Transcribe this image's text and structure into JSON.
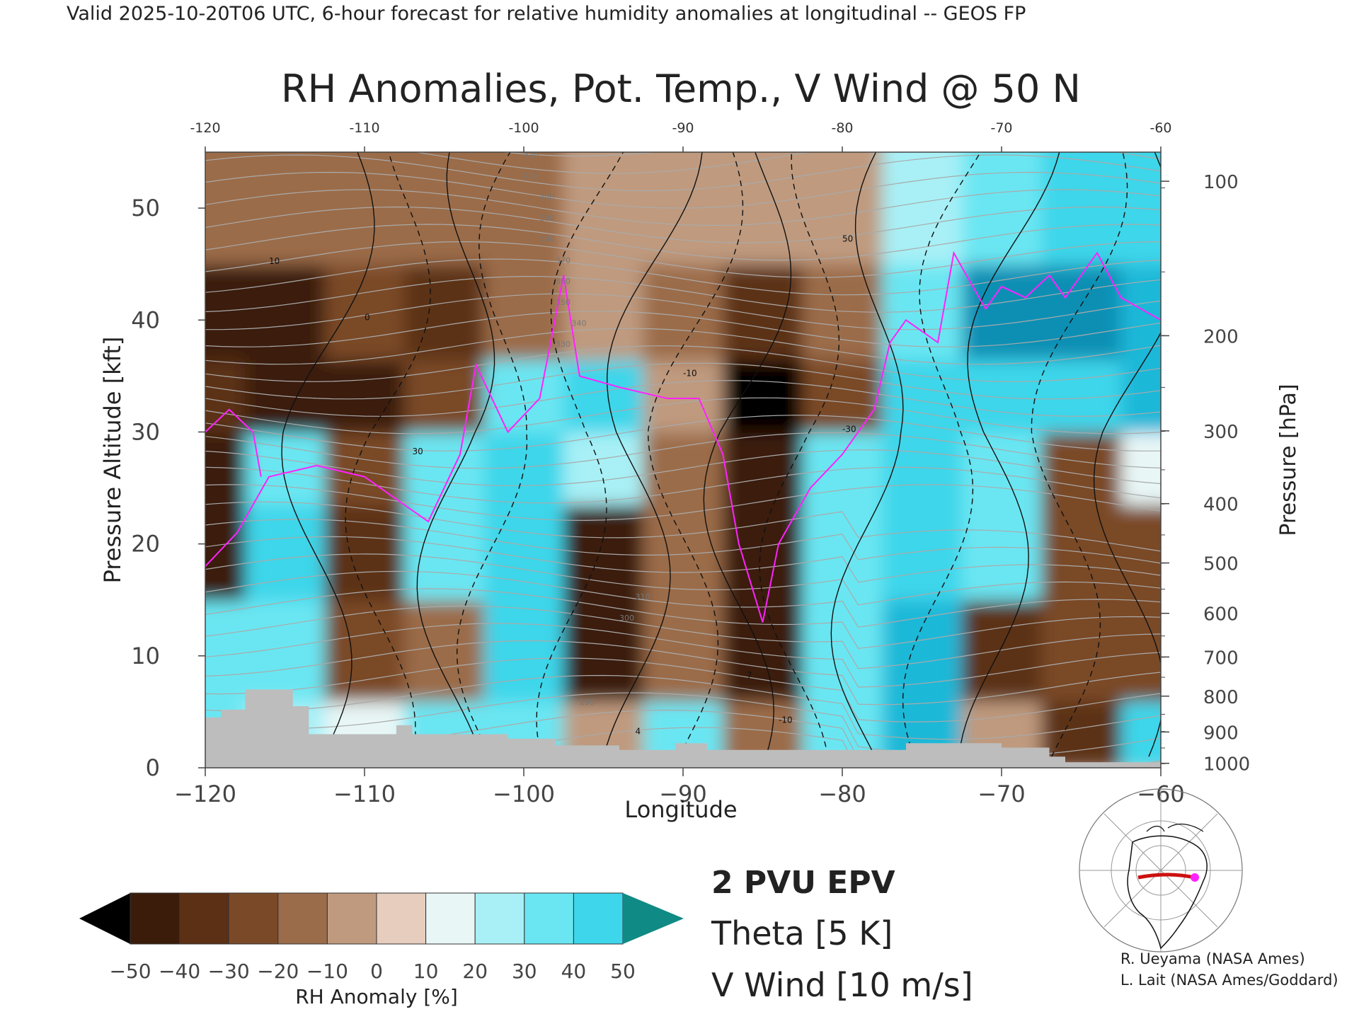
{
  "header": {
    "text": "Valid 2025-10-20T06 UTC, 6-hour forecast for relative humidity anomalies at longitudinal -- GEOS FP"
  },
  "chart_data": {
    "type": "heatmap",
    "title": "RH Anomalies, Pot. Temp., V Wind @ 50 N",
    "xlabel": "Longitude",
    "ylabel_left": "Pressure Altitude [kft]",
    "ylabel_right": "Pressure [hPa]",
    "xlim": [
      -120,
      -60
    ],
    "ylim": [
      0,
      55
    ],
    "x_ticks_bottom": [
      "−120",
      "−110",
      "−100",
      "−90",
      "−80",
      "−70",
      "−60"
    ],
    "x_ticks_top": [
      "-120",
      "-110",
      "-100",
      "-90",
      "-80",
      "-70",
      "-60"
    ],
    "x_tick_values": [
      -120,
      -110,
      -100,
      -90,
      -80,
      -70,
      -60
    ],
    "y_ticks_left": [
      "0",
      "10",
      "20",
      "30",
      "40",
      "50"
    ],
    "y_tick_values_left": [
      0,
      10,
      20,
      30,
      40,
      50
    ],
    "pressure_ticks": [
      {
        "label": "100",
        "alt": 52.4
      },
      {
        "label": "200",
        "alt": 38.6
      },
      {
        "label": "300",
        "alt": 30.1
      },
      {
        "label": "400",
        "alt": 23.6
      },
      {
        "label": "500",
        "alt": 18.3
      },
      {
        "label": "600",
        "alt": 13.8
      },
      {
        "label": "700",
        "alt": 9.9
      },
      {
        "label": "800",
        "alt": 6.4
      },
      {
        "label": "900",
        "alt": 3.2
      },
      {
        "label": "1000",
        "alt": 0.4
      }
    ],
    "grid": false,
    "rh_anomaly_grid": {
      "lons": [
        -120,
        -115,
        -110,
        -105,
        -100,
        -95,
        -90,
        -85,
        -80,
        -75,
        -70,
        -65,
        -60
      ],
      "alts": [
        2,
        10,
        20,
        27,
        33,
        40,
        50
      ],
      "values": [
        [
          20,
          15,
          5,
          20,
          25,
          -10,
          20,
          -20,
          20,
          40,
          -5,
          -40,
          30
        ],
        [
          25,
          20,
          -30,
          -20,
          30,
          -45,
          -20,
          -50,
          25,
          40,
          -40,
          -30,
          -30
        ],
        [
          -45,
          30,
          -35,
          25,
          30,
          -45,
          -20,
          -50,
          25,
          30,
          20,
          -25,
          -30
        ],
        [
          -50,
          25,
          -25,
          20,
          30,
          10,
          -15,
          -50,
          25,
          30,
          20,
          -30,
          5
        ],
        [
          -40,
          -45,
          -50,
          -30,
          25,
          30,
          -10,
          -55,
          -30,
          30,
          35,
          35,
          40
        ],
        [
          -45,
          -45,
          -30,
          -35,
          -20,
          -5,
          -20,
          -40,
          -15,
          20,
          50,
          50,
          45
        ],
        [
          -15,
          -15,
          -15,
          -15,
          -12,
          -10,
          -10,
          -10,
          -5,
          10,
          20,
          30,
          30
        ]
      ],
      "terrain_kft": [
        [
          -120,
          4.5
        ],
        [
          -119,
          5.2
        ],
        [
          -117.5,
          7.0
        ],
        [
          -115.5,
          7.0
        ],
        [
          -114.5,
          5.5
        ],
        [
          -113.5,
          3.0
        ],
        [
          -109,
          3.0
        ],
        [
          -108,
          3.8
        ],
        [
          -107,
          3.0
        ],
        [
          -102,
          3.0
        ],
        [
          -101,
          2.6
        ],
        [
          -98,
          2.0
        ],
        [
          -94,
          1.6
        ],
        [
          -91,
          1.6
        ],
        [
          -90.5,
          2.2
        ],
        [
          -88.5,
          1.6
        ],
        [
          -76.5,
          1.6
        ],
        [
          -76,
          2.2
        ],
        [
          -73,
          2.2
        ],
        [
          -70,
          1.8
        ],
        [
          -67,
          1.0
        ],
        [
          -66,
          0.5
        ],
        [
          -60,
          0.5
        ]
      ]
    },
    "theta_levels_labeled": [
      "290",
      "300",
      "310",
      "330",
      "340",
      "350",
      "360",
      "370",
      "380",
      "390",
      "400",
      "410",
      "420"
    ],
    "vwind_labels": [
      "10",
      "0",
      "30",
      "-10",
      "-30",
      "50",
      "4",
      "7",
      "-10"
    ],
    "legends": {
      "epv": "2 PVU EPV",
      "theta": "Theta [5 K]",
      "vwind": "V Wind [10 m/s]"
    },
    "colorbar": {
      "label": "RH Anomaly [%]",
      "ticks": [
        "−50",
        "−40",
        "−30",
        "−20",
        "−10",
        "0",
        "10",
        "20",
        "30",
        "40",
        "50"
      ],
      "colors": [
        "#000000",
        "#3b1c0a",
        "#5c3015",
        "#7a4a28",
        "#9b6c4a",
        "#bf9a7e",
        "#e6cdbd",
        "#e8f6f6",
        "#a8f0f6",
        "#6ae6f2",
        "#3ed6ea",
        "#1fb8d8",
        "#0d8fb4",
        "#108a84"
      ]
    },
    "colors": {
      "epv": "#ff22ff",
      "theta": "#aaaaaa",
      "vwind": "#111111",
      "terrain": "#bdbdbd"
    }
  },
  "credits": {
    "line1": "R. Ueyama (NASA Ames)",
    "line2": "L. Lait (NASA Ames/Goddard)"
  },
  "locator_map": {
    "icon": "globe-locator-map-icon",
    "track_color": "#cc1111",
    "point_color": "#ff22ff"
  }
}
